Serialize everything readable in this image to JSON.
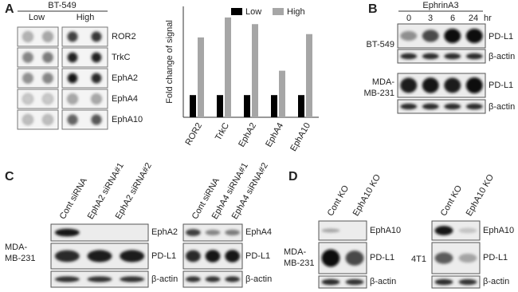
{
  "panel_labels": [
    "A",
    "B",
    "C",
    "D"
  ],
  "panel_a": {
    "cell_line": "BT-549",
    "groups": [
      "Low",
      "High"
    ],
    "targets": [
      "ROR2",
      "TrkC",
      "EphA2",
      "EphA4",
      "EphA10"
    ]
  },
  "chart_data": {
    "type": "bar",
    "y_label": "Fold change of signal",
    "categories": [
      "ROR2",
      "TrkC",
      "EphA2",
      "EphA4",
      "EphA10"
    ],
    "series": [
      {
        "name": "Low",
        "color": "#000000",
        "values": [
          1,
          1,
          1,
          1,
          1
        ]
      },
      {
        "name": "High",
        "color": "#a6a6a6",
        "values": [
          3.6,
          4.5,
          4.2,
          2.1,
          3.75
        ]
      }
    ],
    "ylim": [
      0,
      5
    ],
    "legend": "top"
  },
  "panel_b": {
    "treatment": "EphrinA3",
    "timepoints": [
      "0",
      "3",
      "6",
      "24"
    ],
    "unit": "hr",
    "cell_line_1": "BT-549",
    "cell_line_2": [
      "MDA-",
      "MB-231"
    ],
    "proteins": [
      "PD-L1",
      "β-actin"
    ]
  },
  "panel_c": {
    "lanes_left": [
      "Cont siRNA",
      "EphA2 siRNA#1",
      "EphA2 siRNA#2"
    ],
    "lanes_right": [
      "Cont siRNA",
      "EphA4 siRNA#1",
      "EphA4 siRNA#2"
    ],
    "cell_line": [
      "MDA-",
      "MB-231"
    ],
    "proteins_left": [
      "EphA2",
      "PD-L1",
      "β-actin"
    ],
    "proteins_right": [
      "EphA4",
      "PD-L1",
      "β-actin"
    ]
  },
  "panel_d": {
    "lanes": [
      "Cont KO",
      "EphA10 KO"
    ],
    "cell_line_1": [
      "MDA-",
      "MB-231"
    ],
    "cell_line_2": "4T1",
    "proteins": [
      "EphA10",
      "PD-L1",
      "β-actin"
    ]
  }
}
